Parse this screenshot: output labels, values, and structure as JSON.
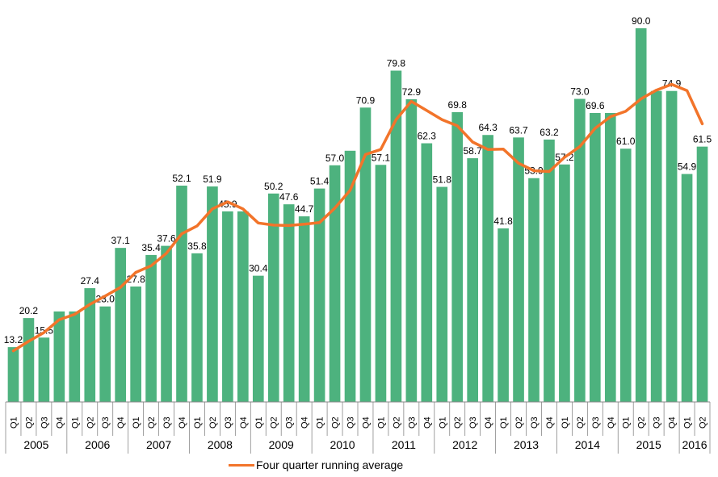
{
  "colors": {
    "bar": "#4db27e",
    "line": "#f2742a",
    "axis": "#888888"
  },
  "chart_data": {
    "type": "bar",
    "categories": [
      "Q1",
      "Q2",
      "Q3",
      "Q4",
      "Q1",
      "Q2",
      "Q3",
      "Q4",
      "Q1",
      "Q2",
      "Q3",
      "Q4",
      "Q1",
      "Q2",
      "Q3",
      "Q4",
      "Q1",
      "Q2",
      "Q3",
      "Q4",
      "Q1",
      "Q2",
      "Q3",
      "Q4",
      "Q1",
      "Q2",
      "Q3",
      "Q4",
      "Q1",
      "Q2",
      "Q3",
      "Q4",
      "Q1",
      "Q2",
      "Q3",
      "Q4",
      "Q1",
      "Q2",
      "Q3",
      "Q4",
      "Q1",
      "Q2",
      "Q3",
      "Q4",
      "Q1",
      "Q2"
    ],
    "years": [
      {
        "label": "2005",
        "quarters": 4
      },
      {
        "label": "2006",
        "quarters": 4
      },
      {
        "label": "2007",
        "quarters": 4
      },
      {
        "label": "2008",
        "quarters": 4
      },
      {
        "label": "2009",
        "quarters": 4
      },
      {
        "label": "2010",
        "quarters": 4
      },
      {
        "label": "2011",
        "quarters": 4
      },
      {
        "label": "2012",
        "quarters": 4
      },
      {
        "label": "2013",
        "quarters": 4
      },
      {
        "label": "2014",
        "quarters": 4
      },
      {
        "label": "2015",
        "quarters": 4
      },
      {
        "label": "2016",
        "quarters": 2
      }
    ],
    "series": [
      {
        "kind": "bar",
        "values": [
          13.2,
          20.2,
          15.5,
          21.8,
          21.8,
          27.4,
          23.0,
          37.1,
          27.8,
          35.4,
          37.6,
          52.1,
          35.8,
          51.9,
          45.9,
          45.9,
          30.4,
          50.2,
          47.6,
          44.7,
          51.4,
          57.0,
          60.5,
          70.9,
          57.1,
          79.8,
          72.9,
          62.3,
          51.8,
          69.8,
          58.7,
          64.3,
          41.8,
          63.7,
          53.9,
          63.2,
          57.2,
          73.0,
          69.6,
          69.6,
          61.0,
          90.0,
          74.9,
          74.9,
          54.9,
          61.5
        ],
        "labels": [
          "13.2",
          "20.2",
          "15.5",
          "",
          "",
          "27.4",
          "23.0",
          "37.1",
          "27.8",
          "35.4",
          "37.6",
          "52.1",
          "35.8",
          "51.9",
          "45.9",
          "",
          "30.4",
          "50.2",
          "47.6",
          "44.7",
          "51.4",
          "57.0",
          "",
          "70.9",
          "57.1",
          "79.8",
          "72.9",
          "62.3",
          "51.8",
          "69.8",
          "58.7",
          "64.3",
          "41.8",
          "63.7",
          "53.9",
          "63.2",
          "57.2",
          "73.0",
          "69.6",
          "",
          "61.0",
          "90.0",
          "",
          "74.9",
          "54.9",
          "61.5"
        ]
      },
      {
        "kind": "line",
        "name": "Four quarter running average",
        "values": [
          12.3,
          14.6,
          16.7,
          19.8,
          21.1,
          23.5,
          25.5,
          27.6,
          31.2,
          32.8,
          35.8,
          40.5,
          42.4,
          46.5,
          48.2,
          46.5,
          43.1,
          42.6,
          42.5,
          42.8,
          43.2,
          46.7,
          51.0,
          59.6,
          60.8,
          68.0,
          72.4,
          70.2,
          68.0,
          66.5,
          62.6,
          60.8,
          60.9,
          57.5,
          55.7,
          55.5,
          58.9,
          61.5,
          65.9,
          68.7,
          70.0,
          73.0,
          75.1,
          76.5,
          75.0,
          67.0
        ]
      }
    ],
    "ylim": [
      0,
      95
    ],
    "grid": false,
    "legend": "bottom"
  },
  "legend": {
    "line_label": "Four quarter running average"
  }
}
